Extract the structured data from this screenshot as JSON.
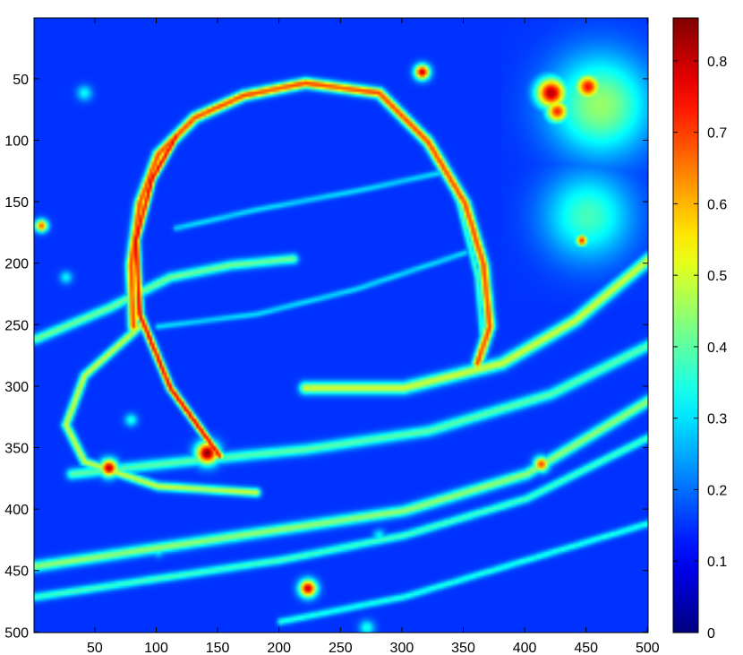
{
  "chart_data": {
    "type": "heatmap",
    "title": "",
    "xlabel": "",
    "ylabel": "",
    "image_size": [
      500,
      500
    ],
    "xlim": [
      1,
      500
    ],
    "ylim": [
      1,
      500
    ],
    "y_axis_reversed": true,
    "x_ticks": [
      50,
      100,
      150,
      200,
      250,
      300,
      350,
      400,
      450,
      500
    ],
    "y_ticks": [
      50,
      100,
      150,
      200,
      250,
      300,
      350,
      400,
      450,
      500
    ],
    "colormap": "jet",
    "colorbar": {
      "range": [
        0,
        0.86
      ],
      "ticks": [
        0,
        0.1,
        0.2,
        0.3,
        0.4,
        0.5,
        0.6,
        0.7,
        0.8
      ],
      "tick_labels": [
        "0",
        "0.1",
        "0.2",
        "0.3",
        "0.4",
        "0.5",
        "0.6",
        "0.7",
        "0.8"
      ]
    },
    "background_value": 0.15,
    "features": [
      {
        "name": "planet-limb",
        "kind": "polyline",
        "value": 0.7,
        "width": 8,
        "points": [
          [
            80,
            250
          ],
          [
            78,
            200
          ],
          [
            85,
            150
          ],
          [
            100,
            110
          ],
          [
            130,
            80
          ],
          [
            170,
            62
          ],
          [
            220,
            52
          ],
          [
            280,
            60
          ],
          [
            320,
            100
          ],
          [
            350,
            150
          ],
          [
            365,
            200
          ],
          [
            370,
            250
          ],
          [
            360,
            280
          ]
        ]
      },
      {
        "name": "limb-bright-edge",
        "kind": "polyline",
        "value": 0.78,
        "width": 6,
        "points": [
          [
            150,
            355
          ],
          [
            110,
            300
          ],
          [
            85,
            240
          ],
          [
            82,
            180
          ],
          [
            95,
            130
          ],
          [
            115,
            95
          ]
        ]
      },
      {
        "name": "planet-limb-right-edge",
        "kind": "polyline",
        "value": 0.38,
        "width": 5,
        "points": [
          [
            320,
            95
          ],
          [
            345,
            150
          ],
          [
            360,
            210
          ],
          [
            365,
            270
          ]
        ]
      },
      {
        "name": "ring-band-upper",
        "kind": "polyline",
        "value": 0.42,
        "width": 8,
        "points": [
          [
            1,
            260
          ],
          [
            60,
            235
          ],
          [
            110,
            210
          ],
          [
            160,
            200
          ],
          [
            210,
            195
          ]
        ]
      },
      {
        "name": "ring-band-right",
        "kind": "polyline",
        "value": 0.5,
        "width": 10,
        "points": [
          [
            220,
            300
          ],
          [
            300,
            300
          ],
          [
            380,
            280
          ],
          [
            440,
            245
          ],
          [
            500,
            195
          ]
        ]
      },
      {
        "name": "ring-band-lower",
        "kind": "polyline",
        "value": 0.45,
        "width": 9,
        "points": [
          [
            1,
            445
          ],
          [
            100,
            430
          ],
          [
            200,
            415
          ],
          [
            300,
            400
          ],
          [
            400,
            370
          ],
          [
            500,
            310
          ]
        ]
      },
      {
        "name": "ring-band-lower-2",
        "kind": "polyline",
        "value": 0.38,
        "width": 7,
        "points": [
          [
            1,
            470
          ],
          [
            100,
            455
          ],
          [
            200,
            440
          ],
          [
            300,
            420
          ],
          [
            400,
            390
          ],
          [
            500,
            340
          ]
        ]
      },
      {
        "name": "ring-band-mid",
        "kind": "polyline",
        "value": 0.4,
        "width": 9,
        "points": [
          [
            30,
            370
          ],
          [
            120,
            360
          ],
          [
            220,
            350
          ],
          [
            320,
            335
          ],
          [
            420,
            305
          ],
          [
            500,
            265
          ]
        ]
      },
      {
        "name": "ring-arc-left",
        "kind": "polyline",
        "value": 0.5,
        "width": 7,
        "points": [
          [
            85,
            250
          ],
          [
            40,
            290
          ],
          [
            25,
            330
          ],
          [
            40,
            360
          ],
          [
            100,
            380
          ],
          [
            180,
            385
          ]
        ]
      },
      {
        "name": "ring-band-bottom",
        "kind": "polyline",
        "value": 0.35,
        "width": 6,
        "points": [
          [
            200,
            490
          ],
          [
            300,
            470
          ],
          [
            400,
            440
          ],
          [
            500,
            410
          ]
        ]
      },
      {
        "name": "cloud-band-1",
        "kind": "polyline",
        "value": 0.3,
        "width": 5,
        "points": [
          [
            115,
            170
          ],
          [
            180,
            155
          ],
          [
            260,
            140
          ],
          [
            330,
            125
          ]
        ]
      },
      {
        "name": "cloud-band-2",
        "kind": "polyline",
        "value": 0.3,
        "width": 5,
        "points": [
          [
            100,
            250
          ],
          [
            180,
            240
          ],
          [
            260,
            220
          ],
          [
            350,
            190
          ]
        ]
      },
      {
        "name": "moon-cluster",
        "kind": "blob",
        "value": 0.45,
        "cx": 460,
        "cy": 70,
        "r": 40
      },
      {
        "name": "moon-cluster-2",
        "kind": "blob",
        "value": 0.38,
        "cx": 450,
        "cy": 160,
        "r": 35
      },
      {
        "name": "moon-core",
        "kind": "blob",
        "value": 0.82,
        "cx": 420,
        "cy": 60,
        "r": 12
      },
      {
        "name": "moon-core-2",
        "kind": "blob",
        "value": 0.75,
        "cx": 450,
        "cy": 55,
        "r": 10
      },
      {
        "name": "moon-core-3",
        "kind": "blob",
        "value": 0.72,
        "cx": 425,
        "cy": 75,
        "r": 9
      },
      {
        "name": "hot-knot",
        "kind": "blob",
        "value": 0.86,
        "cx": 140,
        "cy": 353,
        "r": 9
      },
      {
        "name": "hot-knot-2",
        "kind": "blob",
        "value": 0.82,
        "cx": 60,
        "cy": 365,
        "r": 7
      },
      {
        "name": "hot-spot",
        "kind": "blob",
        "value": 0.8,
        "cx": 222,
        "cy": 463,
        "r": 7
      },
      {
        "name": "hot-spot-2",
        "kind": "blob",
        "value": 0.8,
        "cx": 315,
        "cy": 43,
        "r": 6
      },
      {
        "name": "hot-spot-3",
        "kind": "blob",
        "value": 0.7,
        "cx": 412,
        "cy": 362,
        "r": 6
      },
      {
        "name": "hot-spot-4",
        "kind": "blob",
        "value": 0.68,
        "cx": 5,
        "cy": 168,
        "r": 5
      },
      {
        "name": "hot-spot-5",
        "kind": "blob",
        "value": 0.72,
        "cx": 445,
        "cy": 180,
        "r": 5
      },
      {
        "name": "speck-1",
        "kind": "blob",
        "value": 0.35,
        "cx": 100,
        "cy": 432,
        "r": 5
      },
      {
        "name": "speck-2",
        "kind": "blob",
        "value": 0.35,
        "cx": 78,
        "cy": 326,
        "r": 5
      },
      {
        "name": "speck-3",
        "kind": "blob",
        "value": 0.32,
        "cx": 25,
        "cy": 210,
        "r": 5
      },
      {
        "name": "speck-4",
        "kind": "blob",
        "value": 0.33,
        "cx": 40,
        "cy": 60,
        "r": 6
      },
      {
        "name": "speck-5",
        "kind": "blob",
        "value": 0.32,
        "cx": 280,
        "cy": 420,
        "r": 5
      },
      {
        "name": "speck-6",
        "kind": "blob",
        "value": 0.35,
        "cx": 270,
        "cy": 495,
        "r": 6
      }
    ]
  }
}
